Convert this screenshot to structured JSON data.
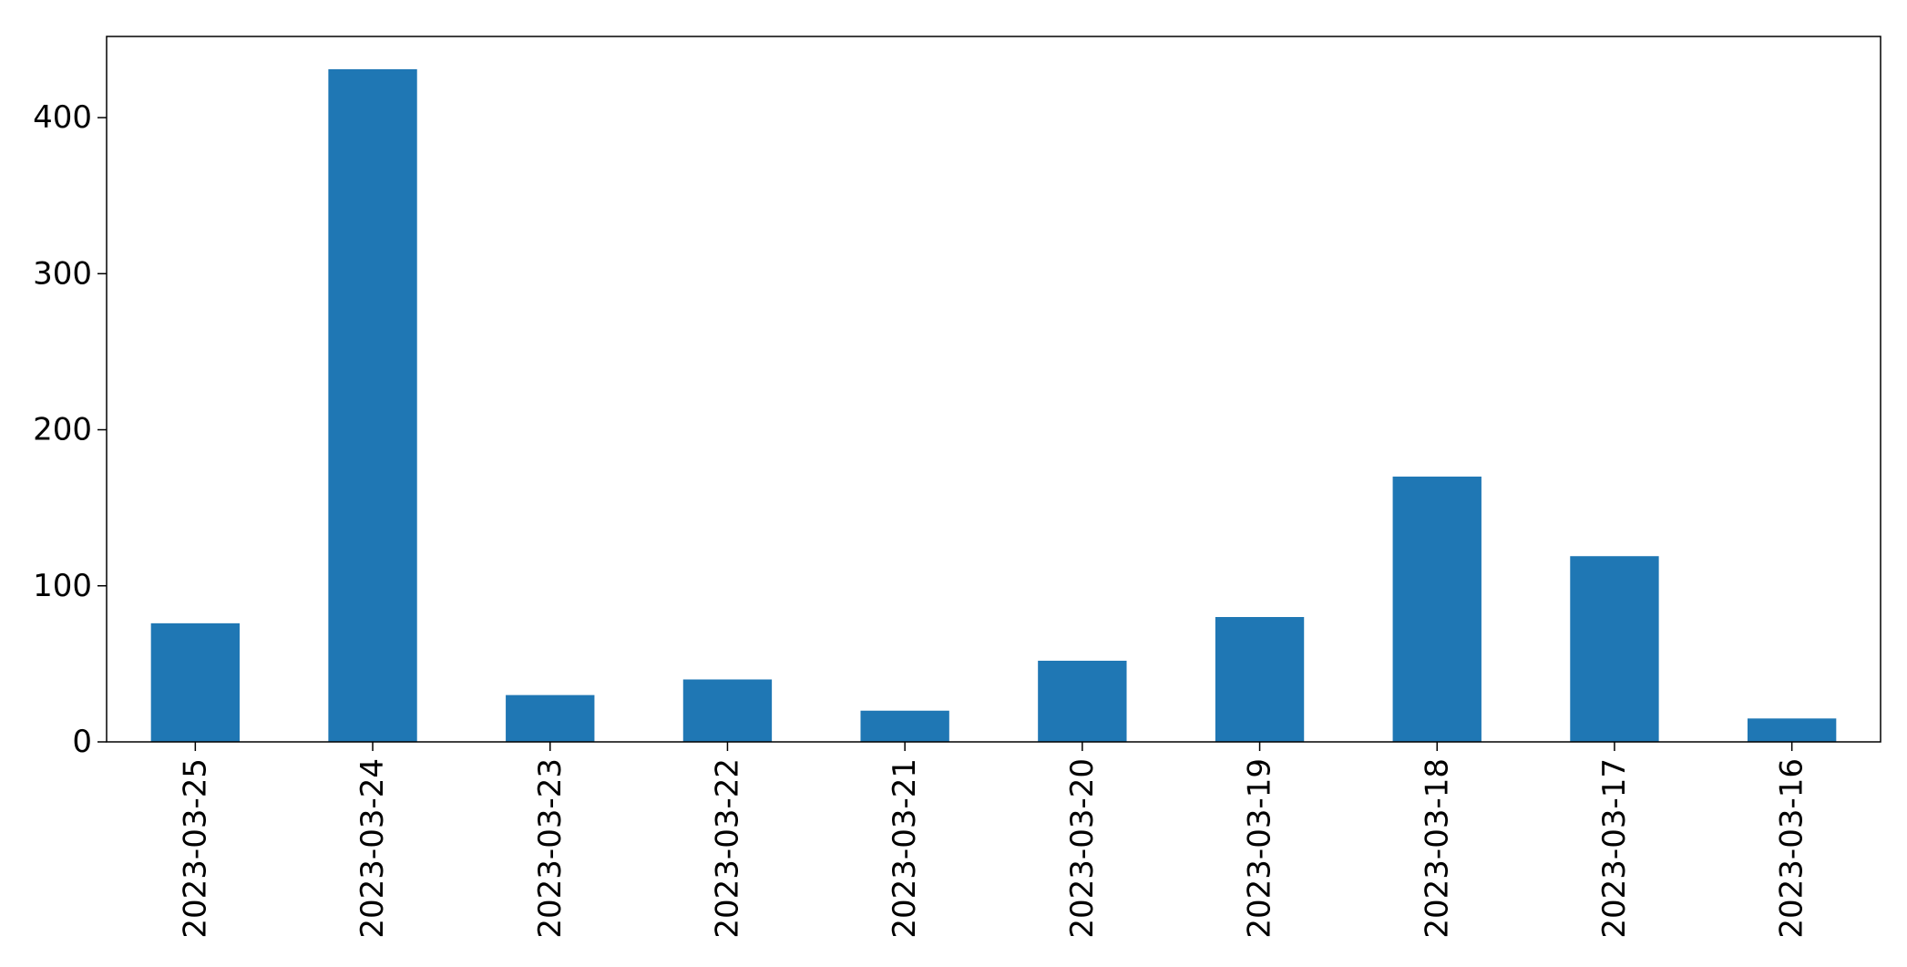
{
  "chart_data": {
    "type": "bar",
    "title": "",
    "xlabel": "",
    "ylabel": "",
    "categories": [
      "2023-03-25",
      "2023-03-24",
      "2023-03-23",
      "2023-03-22",
      "2023-03-21",
      "2023-03-20",
      "2023-03-19",
      "2023-03-18",
      "2023-03-17",
      "2023-03-16"
    ],
    "values": [
      76,
      431,
      30,
      40,
      20,
      52,
      80,
      170,
      119,
      15
    ],
    "ylim": [
      0,
      452
    ],
    "yticks": [
      0,
      100,
      200,
      300,
      400
    ],
    "bar_color": "#1f77b4",
    "grid": false,
    "legend": "none"
  }
}
